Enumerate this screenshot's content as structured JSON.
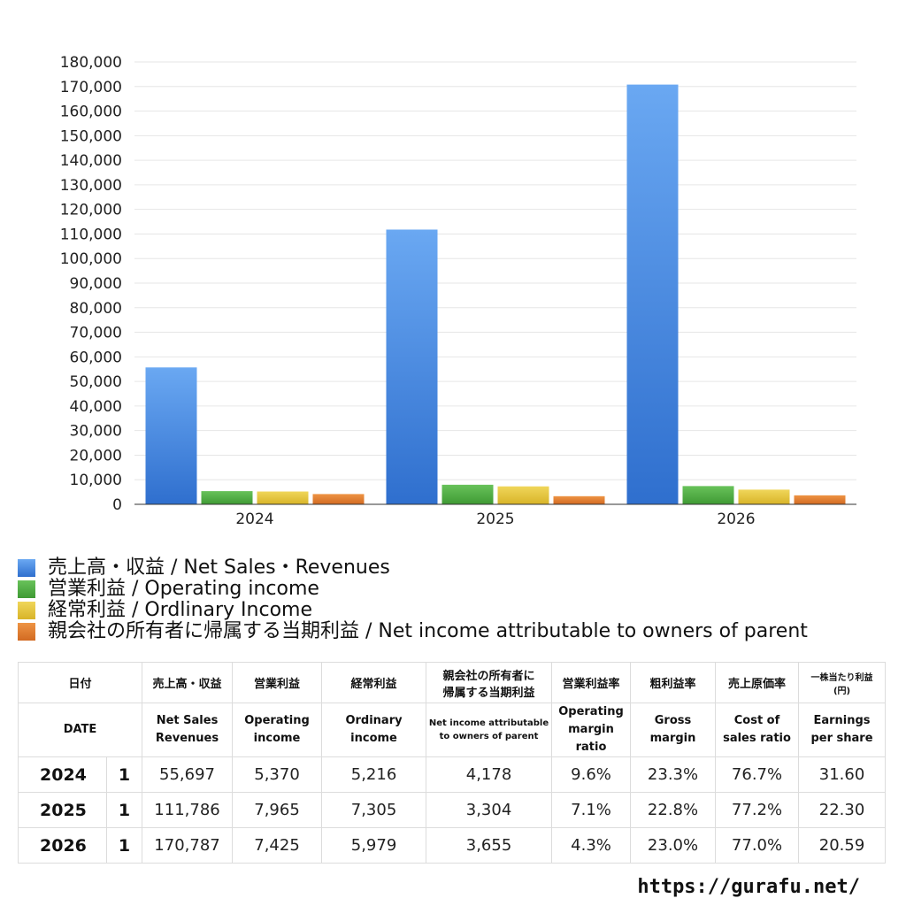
{
  "chart_data": {
    "type": "bar",
    "categories": [
      "2024",
      "2025",
      "2026"
    ],
    "series": [
      {
        "name": "売上高・収益 / Net Sales・Revenues",
        "values": [
          55697,
          111786,
          170787
        ],
        "color": "#3c7fe0"
      },
      {
        "name": "営業利益 / Operating income",
        "values": [
          5370,
          7965,
          7425
        ],
        "color": "#4caf3e"
      },
      {
        "name": "経常利益 / Ordlinary Income",
        "values": [
          5216,
          7305,
          5979
        ],
        "color": "#e6c432"
      },
      {
        "name": "親会社の所有者に帰属する当期利益 / Net income attributable to owners of parent",
        "values": [
          4178,
          3304,
          3655
        ],
        "color": "#e07a2c"
      }
    ],
    "ylim": [
      0,
      180000
    ],
    "ytick_step": 10000,
    "y_tick_labels": [
      "0",
      "10,000",
      "20,000",
      "30,000",
      "40,000",
      "50,000",
      "60,000",
      "70,000",
      "80,000",
      "90,000",
      "100,000",
      "110,000",
      "120,000",
      "130,000",
      "140,000",
      "150,000",
      "160,000",
      "170,000",
      "180,000"
    ],
    "grid": true,
    "legend_position": "bottom-left"
  },
  "table": {
    "header_jp": {
      "date": "日付",
      "sales": "売上高・収益",
      "op": "営業利益",
      "ord": "経常利益",
      "net_line1": "親会社の所有者に",
      "net_line2": "帰属する当期利益",
      "op_margin": "営業利益率",
      "gross": "粗利益率",
      "cost": "売上原価率",
      "eps_line1": "一株当たり利益",
      "eps_line2": "(円)"
    },
    "header_en": {
      "date": "DATE",
      "sales_line1": "Net Sales",
      "sales_line2": "Revenues",
      "op_line1": "Operating",
      "op_line2": "income",
      "ord_line1": "Ordinary",
      "ord_line2": "income",
      "net_line1": "Net income attributable",
      "net_line2": "to owners of parent",
      "op_margin_line1": "Operating",
      "op_margin_line2": "margin",
      "op_margin_line3": "ratio",
      "gross_line1": "Gross",
      "gross_line2": "margin",
      "cost_line1": "Cost of",
      "cost_line2": "sales ratio",
      "eps_line1": "Earnings",
      "eps_line2": "per share"
    },
    "rows": [
      {
        "year": "2024",
        "month": "1",
        "sales": "55,697",
        "op": "5,370",
        "ord": "5,216",
        "net": "4,178",
        "op_margin": "9.6%",
        "gross": "23.3%",
        "cost": "76.7%",
        "eps": "31.60"
      },
      {
        "year": "2025",
        "month": "1",
        "sales": "111,786",
        "op": "7,965",
        "ord": "7,305",
        "net": "3,304",
        "op_margin": "7.1%",
        "gross": "22.8%",
        "cost": "77.2%",
        "eps": "22.30"
      },
      {
        "year": "2026",
        "month": "1",
        "sales": "170,787",
        "op": "7,425",
        "ord": "5,979",
        "net": "3,655",
        "op_margin": "4.3%",
        "gross": "23.0%",
        "cost": "77.0%",
        "eps": "20.59"
      }
    ]
  },
  "source_url": "https://gurafu.net/"
}
